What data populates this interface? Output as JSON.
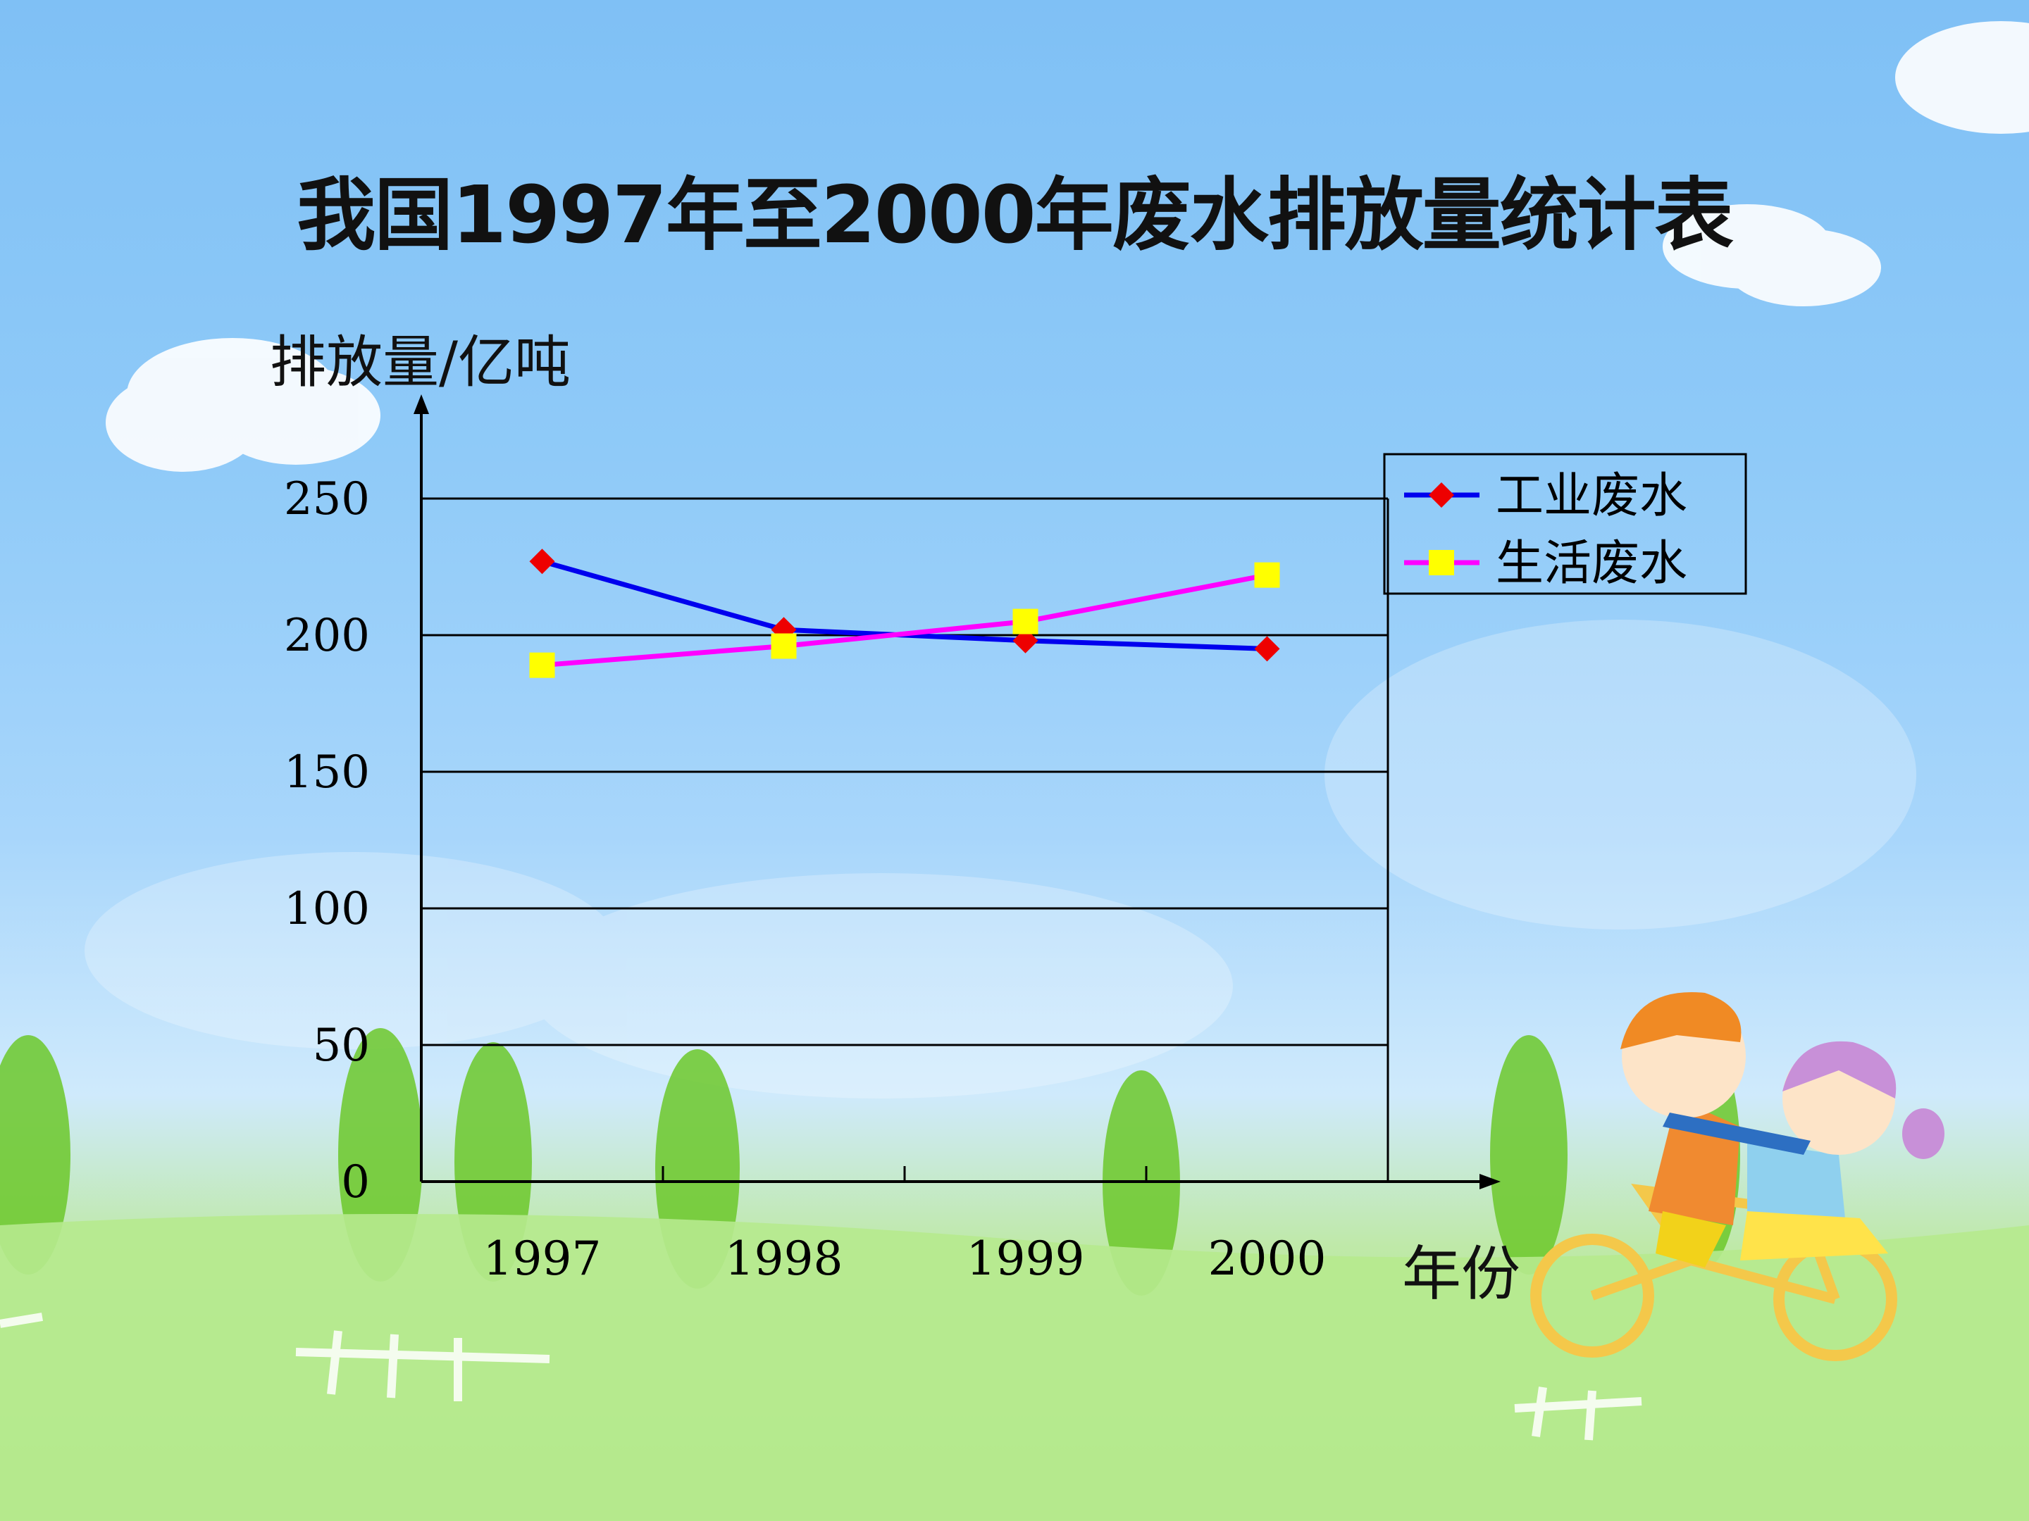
{
  "title": "我国1997年至2000年废水排放量统计表",
  "colors": {
    "industrial": "#0000ee",
    "industrial_marker": "#ee0000",
    "domestic": "#ff00ff",
    "domestic_marker": "#ffff00",
    "axis": "#000000"
  },
  "chart_data": {
    "type": "line",
    "title": "我国1997年至2000年废水排放量统计表",
    "ylabel": "排放量/亿吨",
    "xlabel": "年份",
    "categories": [
      "1997",
      "1998",
      "1999",
      "2000"
    ],
    "ylim": [
      0,
      250
    ],
    "yticks": [
      "0",
      "50",
      "100",
      "150",
      "200",
      "250"
    ],
    "grid": true,
    "legend_position": "top-right",
    "series": [
      {
        "name": "工业废水",
        "values": [
          227,
          202,
          198,
          195
        ],
        "marker": "diamond"
      },
      {
        "name": "生活废水",
        "values": [
          189,
          196,
          205,
          222
        ],
        "marker": "square"
      }
    ]
  }
}
